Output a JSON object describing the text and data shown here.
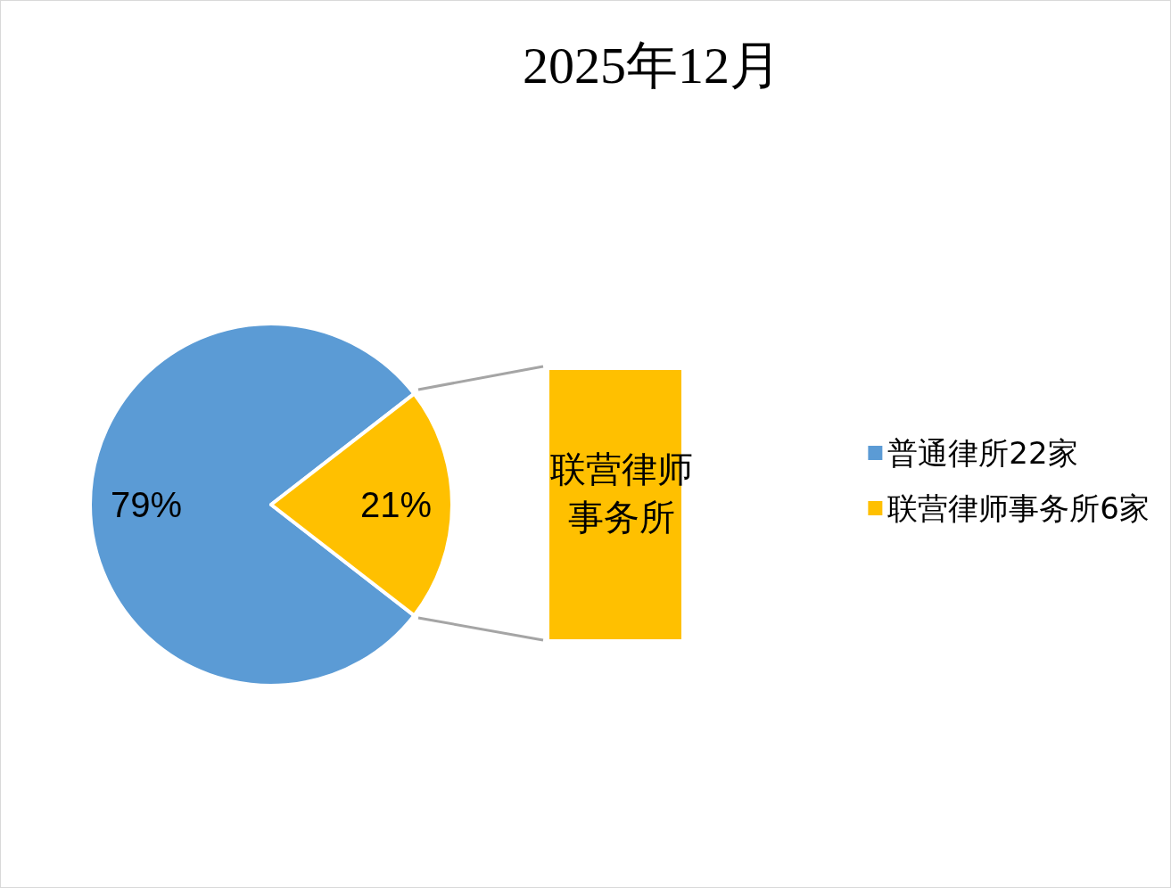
{
  "chart_data": {
    "type": "pie",
    "title": "2025年12月",
    "categories": [
      "普通律所22家",
      "联营律师事务所6家"
    ],
    "values": [
      79,
      21
    ],
    "colors": [
      "#5b9bd5",
      "#ffc000"
    ],
    "value_labels": [
      "79%",
      "21%"
    ],
    "legend": "right",
    "annotations": [
      "联营律师事务所"
    ]
  }
}
